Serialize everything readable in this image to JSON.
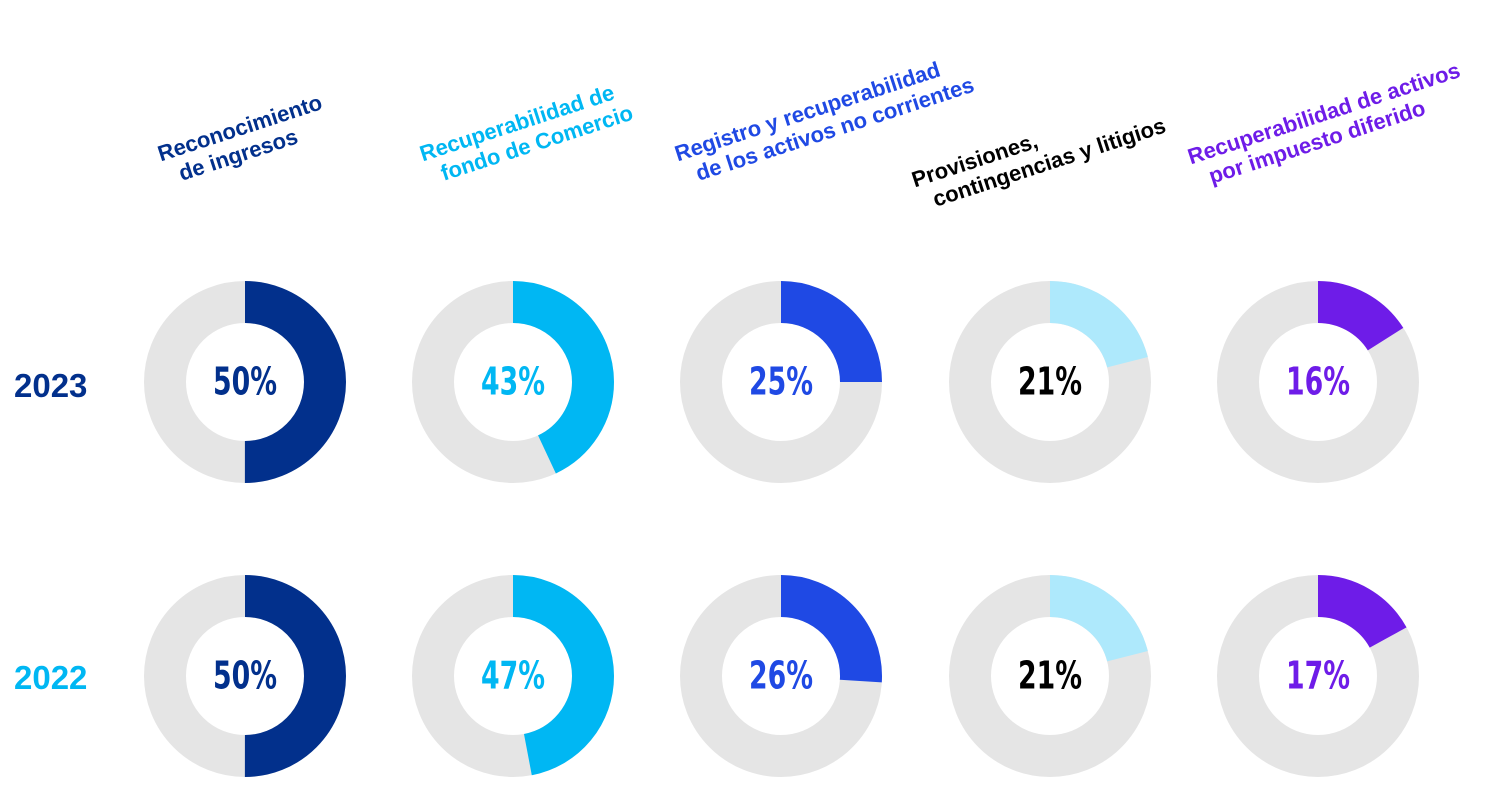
{
  "chart_data": {
    "type": "donut-grid",
    "categories": [
      {
        "lines": [
          "Reconocimiento",
          "de ingresos"
        ],
        "color": "#02308c"
      },
      {
        "lines": [
          "Recuperabilidad de",
          "fondo de Comercio"
        ],
        "color": "#00b7f3"
      },
      {
        "lines": [
          "Registro y recuperabilidad",
          "de los activos no corrientes"
        ],
        "color": "#1f49e4"
      },
      {
        "lines": [
          "Provisiones,",
          "contingencias y litigios"
        ],
        "color": "#000000",
        "ring_color": "#aee9fc"
      },
      {
        "lines": [
          "Recuperabilidad de activos",
          "por impuesto diferido"
        ],
        "color": "#6e1ce8"
      }
    ],
    "series": [
      {
        "name": "2023",
        "color": "#02308c",
        "values": [
          50,
          43,
          25,
          21,
          16
        ],
        "labels": [
          "50%",
          "43%",
          "25%",
          "21%",
          "16%"
        ]
      },
      {
        "name": "2022",
        "color": "#00b7f3",
        "values": [
          50,
          47,
          26,
          21,
          17
        ],
        "labels": [
          "50%",
          "47%",
          "26%",
          "21%",
          "17%"
        ]
      }
    ],
    "track_color": "#e5e5e5"
  }
}
